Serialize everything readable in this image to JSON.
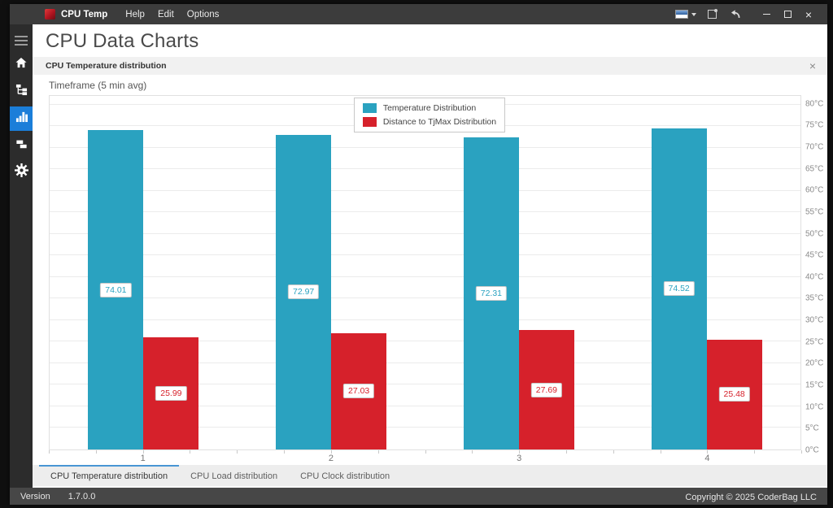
{
  "titlebar": {
    "app_name": "CPU Temp",
    "menus": [
      "Help",
      "Edit",
      "Options"
    ],
    "right_icons": [
      "theme-color-icon",
      "screenshot-icon",
      "undo-icon"
    ],
    "window_controls": [
      "minimize",
      "maximize",
      "close"
    ],
    "close_glyph": "×"
  },
  "sidebar": {
    "items": [
      {
        "name": "menu-toggle",
        "icon": "hamburger-icon",
        "active": false
      },
      {
        "name": "home",
        "icon": "home-icon",
        "active": false
      },
      {
        "name": "sensors-tree",
        "icon": "tree-icon",
        "active": false
      },
      {
        "name": "data-charts",
        "icon": "bar-chart-icon",
        "active": true
      },
      {
        "name": "windows-layout",
        "icon": "layers-icon",
        "active": false
      },
      {
        "name": "settings",
        "icon": "gear-icon",
        "active": false
      }
    ],
    "active_color": "#1b7ed9"
  },
  "page": {
    "title": "CPU Data Charts",
    "panel_title": "CPU Temperature distribution",
    "panel_close_glyph": "×",
    "timeframe_label": "Timeframe (5 min avg)"
  },
  "chart_data": {
    "type": "bar",
    "title": "CPU Temperature distribution",
    "categories": [
      "1",
      "2",
      "3",
      "4"
    ],
    "series": [
      {
        "name": "Temperature Distribution",
        "color": "#2aa2c0",
        "values": [
          74.01,
          72.97,
          72.31,
          74.52
        ]
      },
      {
        "name": "Distance to TjMax Distribution",
        "color": "#d6212b",
        "values": [
          25.99,
          27.03,
          27.69,
          25.48
        ]
      }
    ],
    "xlabel": "",
    "ylabel": "",
    "ylim": [
      0,
      80
    ],
    "ytick_step": 5,
    "tick_suffix": "°C",
    "axis_headroom_max": 82,
    "grid": true,
    "legend_position": "top-center",
    "value_labels": true
  },
  "tabs": [
    {
      "label": "CPU Temperature distribution",
      "active": true
    },
    {
      "label": "CPU Load distribution",
      "active": false
    },
    {
      "label": "CPU Clock distribution",
      "active": false
    }
  ],
  "statusbar": {
    "version_label": "Version",
    "version_value": "1.7.0.0",
    "copyright": "Copyright © 2025 CoderBag LLC"
  }
}
